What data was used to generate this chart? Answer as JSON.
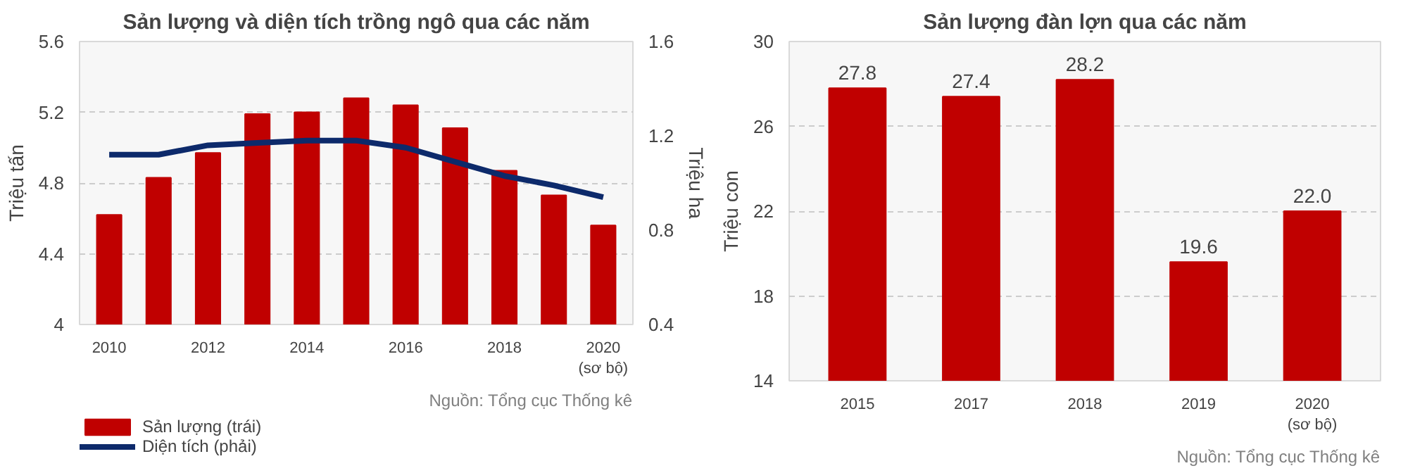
{
  "chart_data": [
    {
      "type": "bar",
      "title": "Sản lượng và diện tích trồng ngô qua các năm",
      "ylabel": "Triệu tấn",
      "y2label": "Triệu ha",
      "categories": [
        "2010",
        null,
        "2012",
        null,
        "2014",
        null,
        "2016",
        null,
        "2018",
        null,
        "2020\n(sơ bộ)"
      ],
      "series": [
        {
          "name": "Sản lượng (trái)",
          "type": "bar",
          "color": "#c00000",
          "values": [
            4.62,
            4.83,
            4.97,
            5.19,
            5.2,
            5.28,
            5.24,
            5.11,
            4.87,
            4.73,
            4.56
          ]
        },
        {
          "name": "Diện tích (phải)",
          "type": "line",
          "axis": "y2",
          "color": "#0d2a6b",
          "values": [
            1.12,
            1.12,
            1.16,
            1.17,
            1.18,
            1.18,
            1.15,
            1.09,
            1.03,
            0.99,
            0.94
          ]
        }
      ],
      "ylim": [
        4,
        5.6
      ],
      "yticks": [
        4,
        4.4,
        4.8,
        5.2,
        5.6
      ],
      "y2lim": [
        0.4,
        1.6
      ],
      "y2ticks": [
        0.4,
        0.8,
        1.2,
        1.6
      ],
      "grid": "y",
      "legend": "bottom left",
      "annotations": [
        "Nguồn: Tổng cục Thống kê"
      ]
    },
    {
      "type": "bar",
      "title": "Sản lượng đàn lợn qua các năm",
      "ylabel": "Triệu con",
      "categories": [
        "2015",
        "2017",
        "2018",
        "2019",
        "2020\n(sơ bộ)"
      ],
      "series": [
        {
          "color": "#c00000",
          "values": [
            27.8,
            27.4,
            28.2,
            19.6,
            22.0
          ],
          "value_labels": [
            "27.8",
            "27.4",
            "28.2",
            "19.6",
            "22.0"
          ]
        }
      ],
      "ylim": [
        14,
        30
      ],
      "yticks": [
        14,
        18,
        22,
        26,
        30
      ],
      "data_labels": true,
      "grid": "y",
      "annotations": [
        "Nguồn: Tổng cục Thống kê"
      ]
    }
  ]
}
